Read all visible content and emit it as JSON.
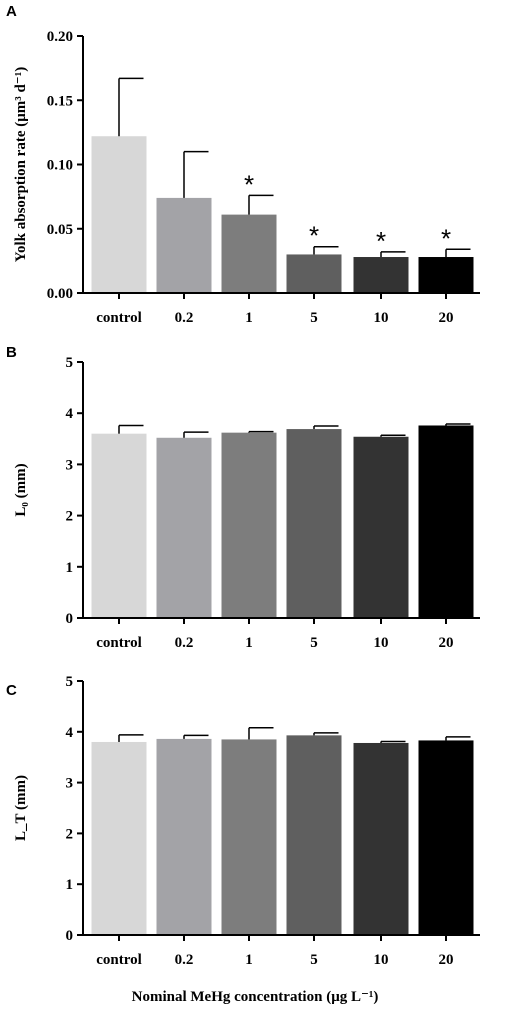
{
  "figure": {
    "common_xlabel": "Nominal MeHg concentration (μg L⁻¹)"
  },
  "chart_data": [
    {
      "panel": "A",
      "type": "bar",
      "categories": [
        "control",
        "0.2",
        "1",
        "5",
        "10",
        "20"
      ],
      "values": [
        0.122,
        0.074,
        0.061,
        0.03,
        0.028,
        0.028
      ],
      "errors": [
        0.045,
        0.036,
        0.015,
        0.006,
        0.004,
        0.006
      ],
      "significance": [
        "",
        "",
        "*",
        "*",
        "*",
        "*"
      ],
      "bar_colors": [
        "#d7d7d7",
        "#a3a3a7",
        "#7d7d7d",
        "#5f5f5f",
        "#333333",
        "#000000"
      ],
      "ylabel": "Yolk absorption rate (μm³ d⁻¹)",
      "ylim": [
        0,
        0.2
      ],
      "yticks": [
        "0.00",
        "0.05",
        "0.10",
        "0.15",
        "0.20"
      ],
      "grid": false
    },
    {
      "panel": "B",
      "type": "bar",
      "categories": [
        "control",
        "0.2",
        "1",
        "5",
        "10",
        "20"
      ],
      "values": [
        3.6,
        3.52,
        3.62,
        3.69,
        3.54,
        3.76
      ],
      "errors": [
        0.16,
        0.11,
        0.02,
        0.06,
        0.03,
        0.03
      ],
      "significance": [
        "",
        "",
        "",
        "",
        "",
        ""
      ],
      "bar_colors": [
        "#d7d7d7",
        "#a3a3a7",
        "#7d7d7d",
        "#5f5f5f",
        "#333333",
        "#000000"
      ],
      "ylabel": "L₀ (mm)",
      "ylim": [
        0,
        5
      ],
      "yticks": [
        "0",
        "1",
        "2",
        "3",
        "4",
        "5"
      ],
      "grid": false
    },
    {
      "panel": "C",
      "type": "bar",
      "categories": [
        "control",
        "0.2",
        "1",
        "5",
        "10",
        "20"
      ],
      "values": [
        3.8,
        3.86,
        3.85,
        3.93,
        3.78,
        3.83
      ],
      "errors": [
        0.14,
        0.07,
        0.23,
        0.05,
        0.03,
        0.07
      ],
      "significance": [
        "",
        "",
        "",
        "",
        "",
        ""
      ],
      "bar_colors": [
        "#d7d7d7",
        "#a3a3a7",
        "#7d7d7d",
        "#5f5f5f",
        "#333333",
        "#000000"
      ],
      "ylabel": "L_T (mm)",
      "ylim": [
        0,
        5
      ],
      "yticks": [
        "0",
        "1",
        "2",
        "3",
        "4",
        "5"
      ],
      "grid": false
    }
  ]
}
